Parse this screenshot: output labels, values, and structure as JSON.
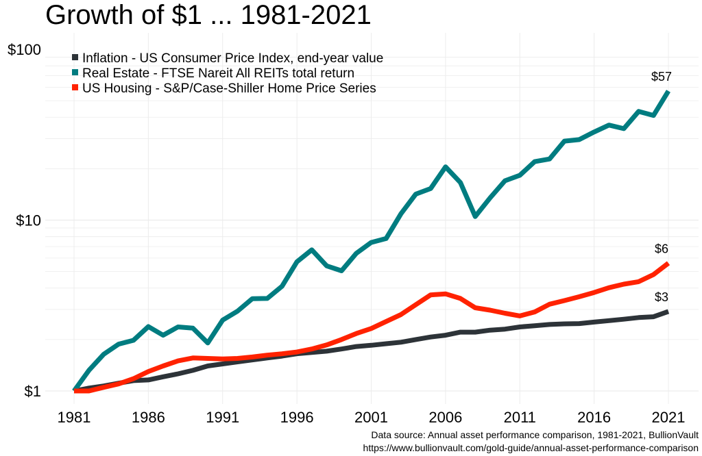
{
  "chart_data": {
    "type": "line",
    "title": "Growth of $1 ... 1981-2021",
    "xlabel": "",
    "ylabel": "",
    "y_scale": "log",
    "ylim": [
      1,
      100
    ],
    "xlim": [
      1981,
      2021
    ],
    "grid": true,
    "legend_position": "top-left",
    "x_ticks": [
      1981,
      1986,
      1991,
      1996,
      2001,
      2006,
      2011,
      2016,
      2021
    ],
    "x_tick_labels": [
      "1981",
      "1986",
      "1991",
      "1996",
      "2001",
      "2006",
      "2011",
      "2016",
      "2021"
    ],
    "y_ticks": [
      1,
      10,
      100
    ],
    "y_tick_labels": [
      "$1",
      "$10",
      "$100"
    ],
    "x": [
      1981,
      1982,
      1983,
      1984,
      1985,
      1986,
      1987,
      1988,
      1989,
      1990,
      1991,
      1992,
      1993,
      1994,
      1995,
      1996,
      1997,
      1998,
      1999,
      2000,
      2001,
      2002,
      2003,
      2004,
      2005,
      2006,
      2007,
      2008,
      2009,
      2010,
      2011,
      2012,
      2013,
      2014,
      2015,
      2016,
      2017,
      2018,
      2019,
      2020,
      2021
    ],
    "series": [
      {
        "name": "Inflation - US Consumer Price Index, end-year value",
        "color": "#2d3338",
        "end_label": "$3",
        "values": [
          1.0,
          1.04,
          1.07,
          1.11,
          1.15,
          1.16,
          1.21,
          1.26,
          1.32,
          1.4,
          1.44,
          1.48,
          1.52,
          1.56,
          1.6,
          1.65,
          1.68,
          1.71,
          1.76,
          1.82,
          1.85,
          1.89,
          1.93,
          2.0,
          2.07,
          2.12,
          2.21,
          2.21,
          2.27,
          2.3,
          2.37,
          2.41,
          2.45,
          2.47,
          2.48,
          2.53,
          2.58,
          2.63,
          2.69,
          2.72,
          2.92
        ]
      },
      {
        "name": "Real Estate - FTSE Nareit All REITs total return",
        "color": "#007c80",
        "end_label": "$57",
        "values": [
          1.0,
          1.32,
          1.64,
          1.88,
          1.98,
          2.38,
          2.12,
          2.37,
          2.33,
          1.91,
          2.6,
          2.93,
          3.47,
          3.48,
          4.1,
          5.7,
          6.7,
          5.4,
          5.05,
          6.4,
          7.4,
          7.8,
          10.9,
          14.2,
          15.3,
          20.5,
          16.6,
          10.5,
          13.5,
          17.0,
          18.3,
          22.0,
          22.8,
          29.0,
          29.6,
          32.8,
          36.0,
          34.3,
          43.3,
          41.0,
          57.0
        ]
      },
      {
        "name": "US Housing - S&P/Case-Shiller Home Price Series",
        "color": "#ff2200",
        "end_label": "$6",
        "values": [
          1.0,
          1.0,
          1.05,
          1.1,
          1.18,
          1.3,
          1.4,
          1.5,
          1.56,
          1.55,
          1.54,
          1.55,
          1.58,
          1.62,
          1.65,
          1.69,
          1.76,
          1.86,
          2.0,
          2.17,
          2.32,
          2.55,
          2.8,
          3.2,
          3.65,
          3.7,
          3.48,
          3.07,
          2.97,
          2.85,
          2.75,
          2.9,
          3.22,
          3.38,
          3.56,
          3.77,
          4.02,
          4.22,
          4.36,
          4.8,
          5.6
        ]
      }
    ],
    "source": [
      "Data source: Annual asset performance comparison, 1981-2021, BullionVault",
      "https://www.bullionvault.com/gold-guide/annual-asset-performance-comparison"
    ]
  }
}
